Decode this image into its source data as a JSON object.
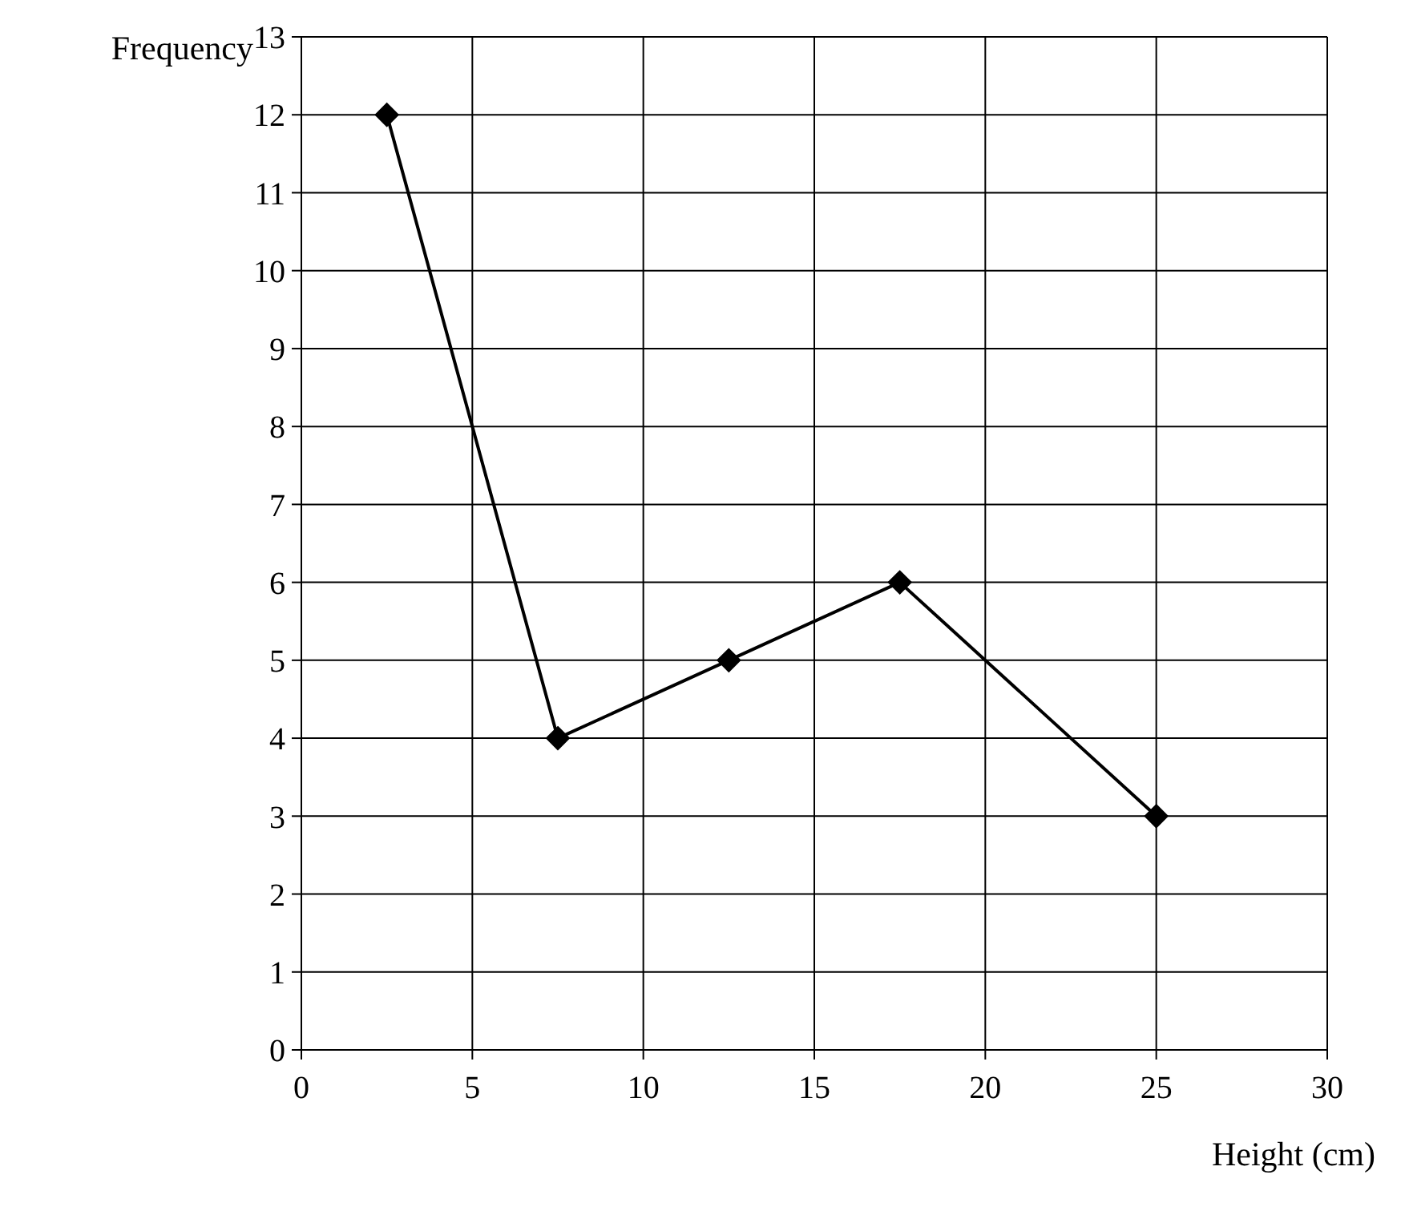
{
  "chart_data": {
    "type": "line",
    "xlabel": "Height (cm)",
    "ylabel": "Frequency",
    "x": [
      2.5,
      7.5,
      12.5,
      17.5,
      25
    ],
    "series": [
      {
        "color": "#000000",
        "values": [
          12,
          4,
          5,
          6,
          3
        ]
      }
    ],
    "xlim": [
      0,
      30
    ],
    "xticks": [
      0,
      5,
      10,
      15,
      20,
      25,
      30
    ],
    "ylim": [
      0,
      13
    ],
    "yticks": [
      0,
      1,
      2,
      3,
      4,
      5,
      6,
      7,
      8,
      9,
      10,
      11,
      12,
      13
    ],
    "grid": true,
    "marker": "diamond",
    "line_style": "solid"
  }
}
